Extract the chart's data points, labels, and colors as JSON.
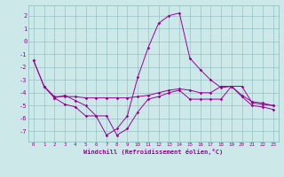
{
  "xlabel": "Windchill (Refroidissement éolien,°C)",
  "bg_color": "#cce8e8",
  "line_color": "#990099",
  "xlim": [
    -0.5,
    23.5
  ],
  "ylim": [
    -7.8,
    2.8
  ],
  "yticks": [
    2,
    1,
    0,
    -1,
    -2,
    -3,
    -4,
    -5,
    -6,
    -7
  ],
  "xticks": [
    0,
    1,
    2,
    3,
    4,
    5,
    6,
    7,
    8,
    9,
    10,
    11,
    12,
    13,
    14,
    15,
    16,
    17,
    18,
    19,
    20,
    21,
    22,
    23
  ],
  "line1_x": [
    0,
    1,
    2,
    3,
    4,
    5,
    6,
    7,
    8,
    9,
    10,
    11,
    12,
    13,
    14,
    15,
    16,
    17,
    18,
    19,
    20,
    21,
    22,
    23
  ],
  "line1_y": [
    -1.5,
    -3.5,
    -4.4,
    -4.9,
    -5.1,
    -5.8,
    -5.8,
    -7.3,
    -6.8,
    -5.8,
    -2.8,
    -0.5,
    1.4,
    2.0,
    2.2,
    -1.3,
    -2.2,
    -3.0,
    -3.6,
    -3.5,
    -4.3,
    -5.0,
    -5.1,
    -5.3
  ],
  "line2_x": [
    0,
    1,
    2,
    3,
    4,
    5,
    6,
    7,
    8,
    9,
    10,
    11,
    12,
    13,
    14,
    15,
    16,
    17,
    18,
    19,
    20,
    21,
    22,
    23
  ],
  "line2_y": [
    -1.5,
    -3.5,
    -4.3,
    -4.3,
    -4.3,
    -4.4,
    -4.4,
    -4.4,
    -4.4,
    -4.4,
    -4.3,
    -4.2,
    -4.0,
    -3.8,
    -3.7,
    -3.8,
    -4.0,
    -4.0,
    -3.5,
    -3.5,
    -4.2,
    -4.7,
    -4.8,
    -5.0
  ],
  "line3_x": [
    1,
    2,
    3,
    4,
    5,
    6,
    7,
    8,
    9,
    10,
    11,
    12,
    13,
    14,
    15,
    16,
    17,
    18,
    19,
    20,
    21,
    22,
    23
  ],
  "line3_y": [
    -3.5,
    -4.4,
    -4.2,
    -4.6,
    -5.0,
    -5.8,
    -5.8,
    -7.3,
    -6.8,
    -5.5,
    -4.5,
    -4.3,
    -4.0,
    -3.8,
    -4.5,
    -4.5,
    -4.5,
    -4.5,
    -3.5,
    -3.5,
    -4.8,
    -4.9,
    -5.0
  ]
}
